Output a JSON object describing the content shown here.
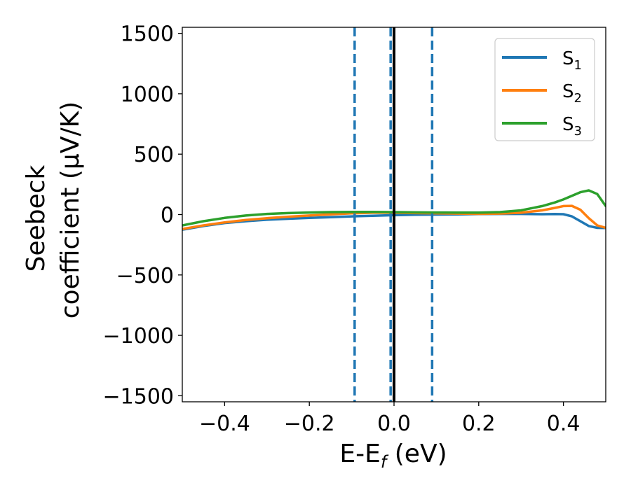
{
  "chart_data": {
    "type": "line",
    "title": "",
    "xlabel": {
      "main": "E-E",
      "sub": "f",
      "unit": " (eV)"
    },
    "ylabel": {
      "line1": "Seebeck",
      "line2": "coefficient  (μV/K)"
    },
    "xlim": [
      -0.5,
      0.5
    ],
    "ylim": [
      -1550,
      1550
    ],
    "xticks": [
      {
        "value": -0.4,
        "label": "−0.4"
      },
      {
        "value": -0.2,
        "label": "−0.2"
      },
      {
        "value": 0.0,
        "label": "0.0"
      },
      {
        "value": 0.2,
        "label": "0.2"
      },
      {
        "value": 0.4,
        "label": "0.4"
      }
    ],
    "yticks": [
      {
        "value": 1500,
        "label": "1500"
      },
      {
        "value": 1000,
        "label": "1000"
      },
      {
        "value": 500,
        "label": "500"
      },
      {
        "value": 0,
        "label": "0"
      },
      {
        "value": -500,
        "label": "−500"
      },
      {
        "value": -1000,
        "label": "−1000"
      },
      {
        "value": -1500,
        "label": "−1500"
      }
    ],
    "grid": false,
    "legend_position": "top-right",
    "vertical_lines": [
      {
        "x": 0.0,
        "style": "solid",
        "color": "#000000"
      },
      {
        "x": -0.093,
        "style": "dashed",
        "color": "#1f77b4"
      },
      {
        "x": -0.008,
        "style": "dashed",
        "color": "#1f77b4"
      },
      {
        "x": 0.09,
        "style": "dashed",
        "color": "#1f77b4"
      }
    ],
    "series": [
      {
        "name": "S",
        "sub": "1",
        "color": "#1f77b4",
        "x": [
          -0.5,
          -0.45,
          -0.4,
          -0.35,
          -0.3,
          -0.25,
          -0.2,
          -0.15,
          -0.1,
          -0.05,
          0.0,
          0.05,
          0.1,
          0.15,
          0.2,
          0.25,
          0.3,
          0.35,
          0.38,
          0.4,
          0.42,
          0.44,
          0.46,
          0.48,
          0.5
        ],
        "values": [
          -125,
          -95,
          -70,
          -55,
          -43,
          -35,
          -28,
          -22,
          -15,
          -10,
          -5,
          -2,
          0,
          2,
          4,
          5,
          5,
          3,
          4,
          3,
          -15,
          -55,
          -95,
          -110,
          -112
        ]
      },
      {
        "name": "S",
        "sub": "2",
        "color": "#ff7f0e",
        "x": [
          -0.5,
          -0.45,
          -0.4,
          -0.35,
          -0.3,
          -0.25,
          -0.2,
          -0.15,
          -0.1,
          -0.05,
          0.0,
          0.05,
          0.1,
          0.15,
          0.2,
          0.25,
          0.3,
          0.35,
          0.38,
          0.4,
          0.42,
          0.44,
          0.46,
          0.48,
          0.5
        ],
        "values": [
          -120,
          -90,
          -65,
          -45,
          -30,
          -18,
          -8,
          2,
          10,
          15,
          15,
          12,
          10,
          8,
          6,
          8,
          15,
          35,
          55,
          70,
          72,
          40,
          -30,
          -90,
          -110
        ]
      },
      {
        "name": "S",
        "sub": "3",
        "color": "#2ca02c",
        "x": [
          -0.5,
          -0.45,
          -0.4,
          -0.35,
          -0.3,
          -0.25,
          -0.2,
          -0.15,
          -0.1,
          -0.05,
          0.0,
          0.05,
          0.1,
          0.15,
          0.2,
          0.25,
          0.3,
          0.35,
          0.38,
          0.4,
          0.42,
          0.44,
          0.46,
          0.48,
          0.5
        ],
        "values": [
          -90,
          -55,
          -28,
          -8,
          5,
          12,
          17,
          20,
          22,
          22,
          20,
          18,
          17,
          16,
          16,
          20,
          35,
          70,
          100,
          125,
          155,
          185,
          200,
          170,
          70
        ]
      }
    ]
  }
}
